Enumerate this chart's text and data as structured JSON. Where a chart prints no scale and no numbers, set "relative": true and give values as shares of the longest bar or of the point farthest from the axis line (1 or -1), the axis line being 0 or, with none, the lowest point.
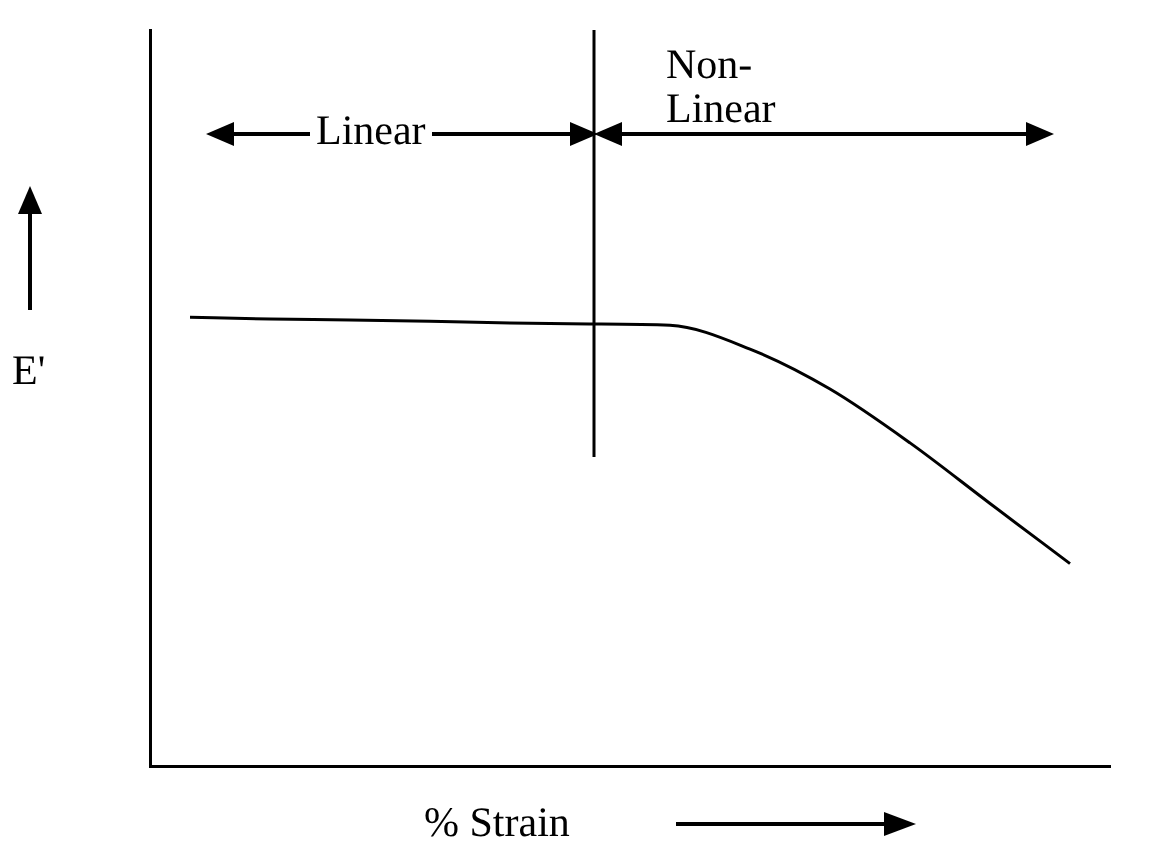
{
  "chart_data": {
    "type": "line",
    "relative": true,
    "xlabel": "% Strain",
    "ylabel": "E'",
    "categories": [
      null,
      null,
      null,
      null,
      null,
      null,
      null,
      null,
      null,
      null,
      null,
      null
    ],
    "series": [
      {
        "color": "#000000",
        "values": [
          1.0,
          0.996,
          0.994,
          0.991,
          0.987,
          0.985,
          0.982,
          0.929,
          0.84,
          0.72,
          0.585,
          0.451
        ]
      }
    ],
    "annotations": [
      "Linear",
      "Non-Linear"
    ],
    "marker": "none",
    "line_style": "solid",
    "grid": false,
    "legend": false
  }
}
